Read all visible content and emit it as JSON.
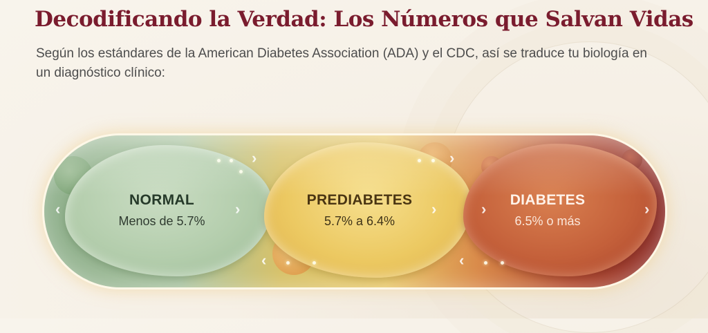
{
  "header": {
    "title": "Decodificando la Verdad: Los Números que Salvan Vidas",
    "subtitle": "Según los estándares de la American Diabetes Association (ADA) y el CDC, así se traduce tu biología en un diagnóstico clínico:"
  },
  "segments": [
    {
      "title": "NORMAL",
      "value": "Menos de 5.7%",
      "color": "#a9c3a0"
    },
    {
      "title": "PREDIABETES",
      "value": "5.7% a 6.4%",
      "color": "#ecc962"
    },
    {
      "title": "DIABETES",
      "value": "6.5% o más",
      "color": "#c4603a"
    }
  ],
  "icons": {
    "left_arrow": "chevron-left-icon",
    "right_arrow": "chevron-right-icon"
  },
  "colors": {
    "title": "#7a1c2e",
    "subtitle": "#4d4d4d",
    "background": "#f6f0e6"
  }
}
